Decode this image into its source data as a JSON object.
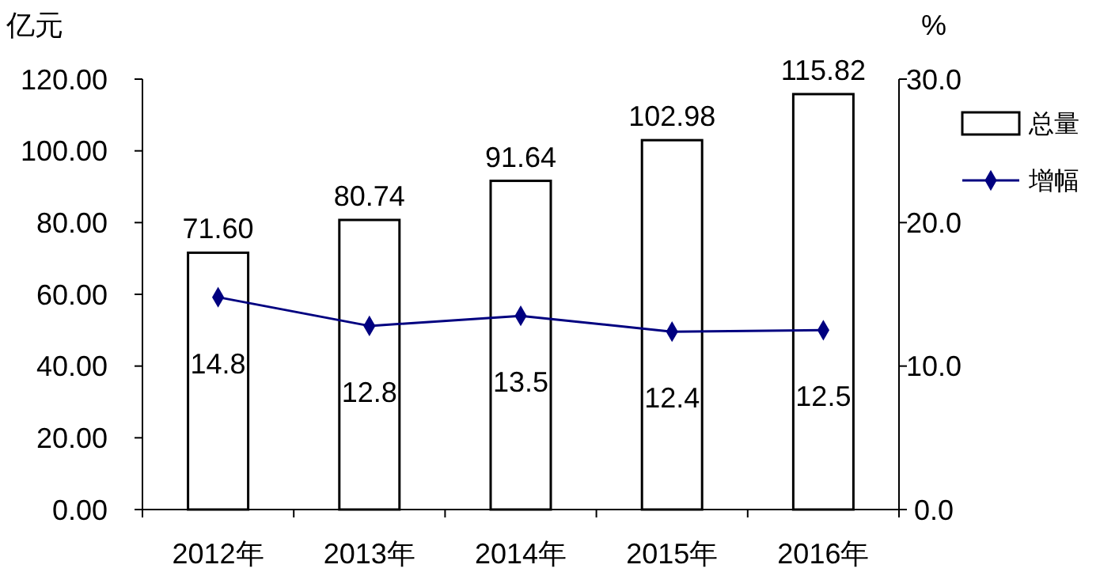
{
  "chart_data": {
    "type": "bar",
    "ylabel": "亿元",
    "y2label": "%",
    "categories": [
      "2012年",
      "2013年",
      "2014年",
      "2015年",
      "2016年"
    ],
    "series": [
      {
        "name": "总量",
        "color": "#ffffff",
        "values": [
          71.6,
          80.74,
          91.64,
          102.98,
          115.82
        ],
        "value_labels": [
          "71.60",
          "80.74",
          "91.64",
          "102.98",
          "115.82"
        ]
      },
      {
        "name": "增幅",
        "type": "line",
        "axis": "y2",
        "color": "#000080",
        "values": [
          14.8,
          12.8,
          13.5,
          12.4,
          12.5
        ]
      }
    ],
    "ylim": [
      0,
      120
    ],
    "yticks": [
      {
        "value": 0,
        "label": "0.00"
      },
      {
        "value": 20,
        "label": "20.00"
      },
      {
        "value": 40,
        "label": "40.00"
      },
      {
        "value": 60,
        "label": "60.00"
      },
      {
        "value": 80,
        "label": "80.00"
      },
      {
        "value": 100,
        "label": "100.00"
      },
      {
        "value": 120,
        "label": "120.00"
      }
    ],
    "y2lim": [
      0,
      30
    ],
    "y2ticks": [
      {
        "value": 0,
        "label": "0.0"
      },
      {
        "value": 10,
        "label": "10.0"
      },
      {
        "value": 20,
        "label": "20.0"
      },
      {
        "value": 30,
        "label": "30.0"
      }
    ],
    "data_labels": true,
    "legend": "right",
    "marker": "diamond",
    "grid": false
  }
}
